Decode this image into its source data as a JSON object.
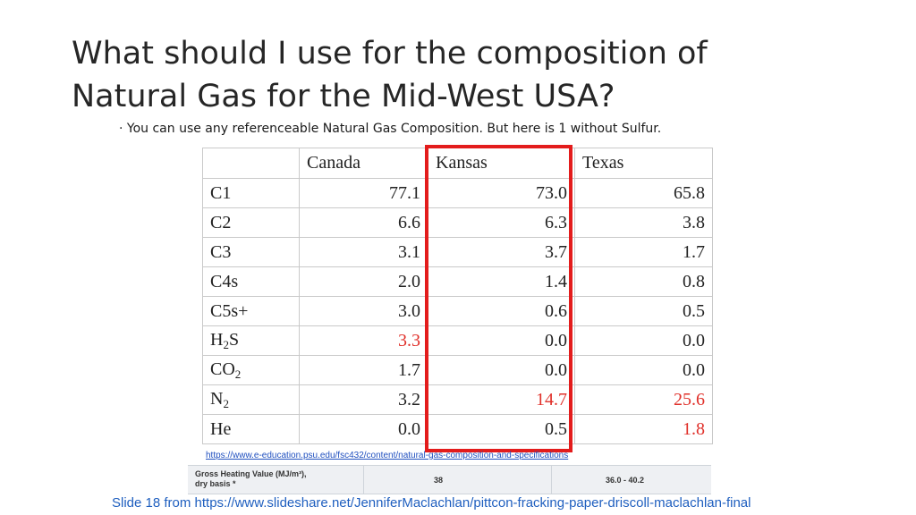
{
  "slide": {
    "title_line1": "What should I use for the composition of",
    "title_line2": "Natural Gas for the Mid-West USA?",
    "bullet": "· You can use any referenceable Natural Gas Composition. But here is 1 without Sulfur.",
    "reference_url": "https://www.e-education.psu.edu/fsc432/content/natural-gas-composition-and-specifications",
    "footer": "Slide 18 from https://www.slideshare.net/JenniferMaclachlan/pittcon-fracking-paper-driscoll-maclachlan-final"
  },
  "table": {
    "headers": [
      "",
      "Canada",
      "Kansas",
      "Texas"
    ],
    "rows": [
      {
        "label": "C1",
        "sub": "",
        "canada": "77.1",
        "kansas": "73.0",
        "texas": "65.8"
      },
      {
        "label": "C2",
        "sub": "",
        "canada": "6.6",
        "kansas": "6.3",
        "texas": "3.8"
      },
      {
        "label": "C3",
        "sub": "",
        "canada": "3.1",
        "kansas": "3.7",
        "texas": "1.7"
      },
      {
        "label": "C4s",
        "sub": "",
        "canada": "2.0",
        "kansas": "1.4",
        "texas": "0.8"
      },
      {
        "label": "C5s+",
        "sub": "",
        "canada": "3.0",
        "kansas": "0.6",
        "texas": "0.5"
      },
      {
        "label": "H",
        "sub": "2",
        "suffix": "S",
        "canada": "3.3",
        "kansas": "0.0",
        "texas": "0.0"
      },
      {
        "label": "CO",
        "sub": "2",
        "canada": "1.7",
        "kansas": "0.0",
        "texas": "0.0"
      },
      {
        "label": "N",
        "sub": "2",
        "canada": "3.2",
        "kansas": "14.7",
        "texas": "25.6"
      },
      {
        "label": "He",
        "sub": "",
        "canada": "0.0",
        "kansas": "0.5",
        "texas": "1.8"
      }
    ],
    "highlight_color": "#e0302a",
    "box_color": "#e31c1c"
  },
  "heating": {
    "label_line1": "Gross Heating Value (MJ/m³),",
    "label_line2": "dry basis *",
    "value1": "38",
    "value2": "36.0 - 40.2"
  }
}
